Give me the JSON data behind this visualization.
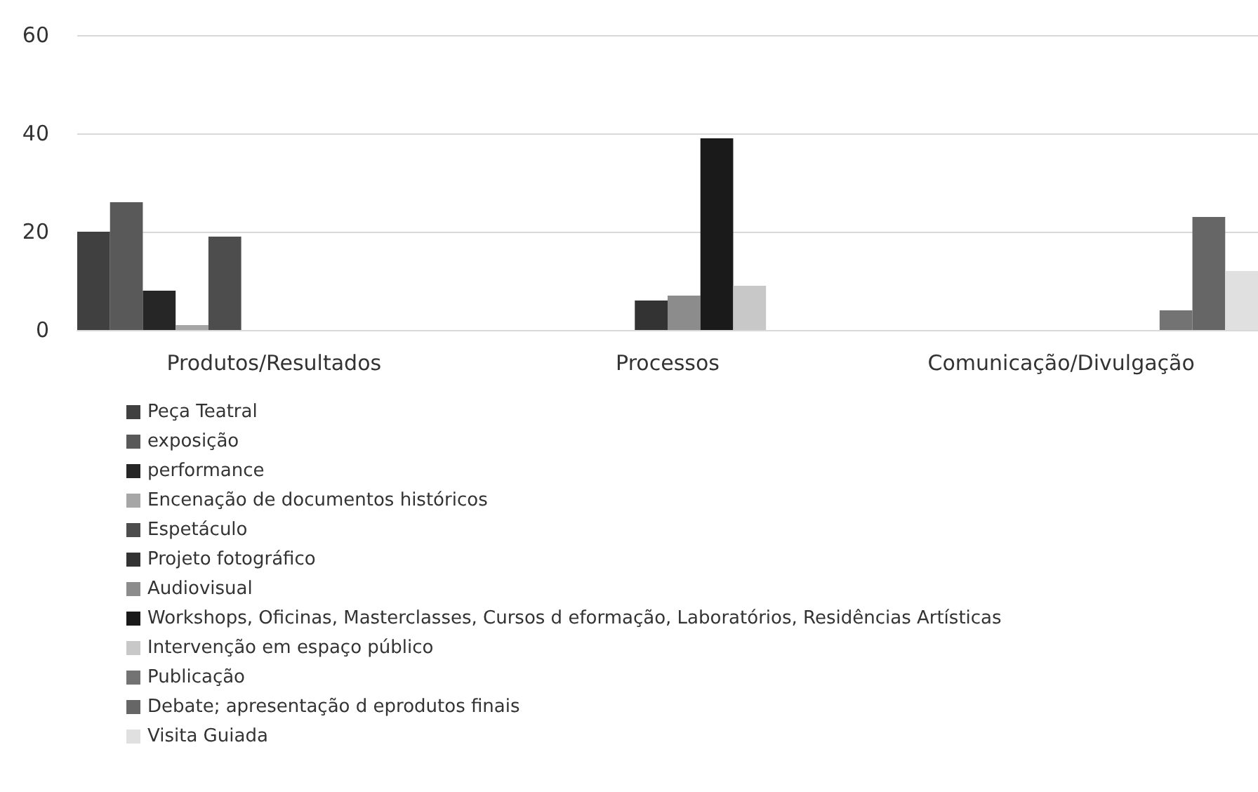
{
  "chart_data": {
    "type": "bar",
    "categories": [
      "Produtos/Resultados",
      "Processos",
      "Comunicação/Divulgação"
    ],
    "series": [
      {
        "name": "Peça Teatral",
        "color": "#404040",
        "values": [
          20,
          null,
          null
        ]
      },
      {
        "name": "exposição",
        "color": "#595959",
        "values": [
          26,
          null,
          null
        ]
      },
      {
        "name": "performance",
        "color": "#262626",
        "values": [
          8,
          null,
          null
        ]
      },
      {
        "name": "Encenação de documentos históricos",
        "color": "#a6a6a6",
        "values": [
          1,
          null,
          null
        ]
      },
      {
        "name": "Espetáculo",
        "color": "#4d4d4d",
        "values": [
          19,
          null,
          null
        ]
      },
      {
        "name": "Projeto fotográfico",
        "color": "#333333",
        "values": [
          null,
          6,
          null
        ]
      },
      {
        "name": "Audiovisual",
        "color": "#8c8c8c",
        "values": [
          null,
          7,
          null
        ]
      },
      {
        "name": "Workshops, Oficinas, Masterclasses, Cursos d eformação, Laboratórios, Residências Artísticas",
        "color": "#1a1a1a",
        "values": [
          null,
          39,
          null
        ]
      },
      {
        "name": "Intervenção em espaço público",
        "color": "#c8c8c8",
        "values": [
          null,
          9,
          null
        ]
      },
      {
        "name": "Publicação",
        "color": "#737373",
        "values": [
          null,
          null,
          4
        ]
      },
      {
        "name": "Debate; apresentação d eprodutos finais",
        "color": "#666666",
        "values": [
          null,
          null,
          23
        ]
      },
      {
        "name": "Visita Guiada",
        "color": "#e0e0e0",
        "values": [
          null,
          null,
          12
        ]
      }
    ],
    "ylim": [
      0,
      60
    ],
    "yticks": [
      0,
      20,
      40,
      60
    ],
    "grid": "y",
    "legend": "bottom"
  }
}
